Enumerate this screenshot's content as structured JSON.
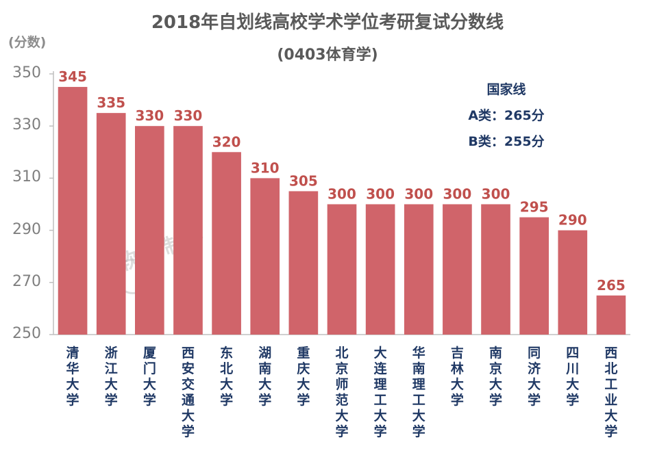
{
  "chart_data": {
    "type": "bar",
    "title": "2018年自划线高校学术学位考研复试分数线",
    "subtitle": "(0403体育学)",
    "ylabel": "(分数)",
    "ylim": [
      250,
      350
    ],
    "yticks": [
      250,
      270,
      290,
      310,
      330,
      350
    ],
    "categories": [
      "清华大学",
      "浙江大学",
      "厦门大学",
      "西安交通大学",
      "东北大学",
      "湖南大学",
      "重庆大学",
      "北京师范大学",
      "大连理工大学",
      "华南理工大学",
      "吉林大学",
      "南京大学",
      "同济大学",
      "四川大学",
      "西北工业大学"
    ],
    "values": [
      345,
      335,
      330,
      330,
      320,
      310,
      305,
      300,
      300,
      300,
      300,
      300,
      295,
      290,
      265
    ],
    "bar_color": "#d0646a",
    "label_color": "#c0504d",
    "annotation": {
      "heading": "国家线",
      "line_a": "A类：265分",
      "line_b": "B类：255分"
    },
    "watermark": "软科 制作"
  }
}
